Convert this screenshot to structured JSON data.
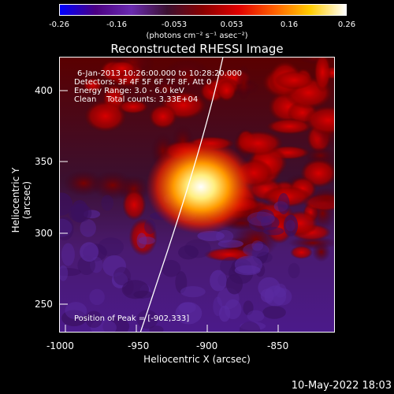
{
  "colorbar": {
    "ticks": [
      "-0.26",
      "-0.16",
      "-0.053",
      "0.053",
      "0.16",
      "0.26"
    ],
    "units": "(photons cm⁻² s⁻¹ asec⁻²)",
    "colors": [
      "#0000ff",
      "#4b0082",
      "#6a2bb0",
      "#3a1030",
      "#8a0000",
      "#e00000",
      "#ff6000",
      "#ffcc00",
      "#ffffff"
    ]
  },
  "title": "Reconstructed RHESSI Image",
  "info": {
    "line1": "6-Jan-2013 10:26:00.000 to 10:28:20.000",
    "line2": "Detectors: 3F 4F 5F 6F 7F 8F, Att 0",
    "line3": "Energy Range: 3.0 - 6.0 keV",
    "line4": "Clean    Total counts: 3.33E+04",
    "peak": "Position of Peak = [-902,333]"
  },
  "x_ticks": [
    "-1000",
    "-950",
    "-900",
    "-850"
  ],
  "y_ticks": [
    "400",
    "350",
    "300",
    "250"
  ],
  "xlabel": "Heliocentric X (arcsec)",
  "ylabel": "Heliocentric Y (arcsec)",
  "datestamp": "10-May-2022 18:03",
  "chart_data": {
    "type": "heatmap",
    "x_range": [
      -1007,
      -812
    ],
    "y_range": [
      230,
      422
    ],
    "peak": [
      -902,
      333
    ],
    "colorbar_range": [
      -0.26,
      0.26
    ]
  }
}
